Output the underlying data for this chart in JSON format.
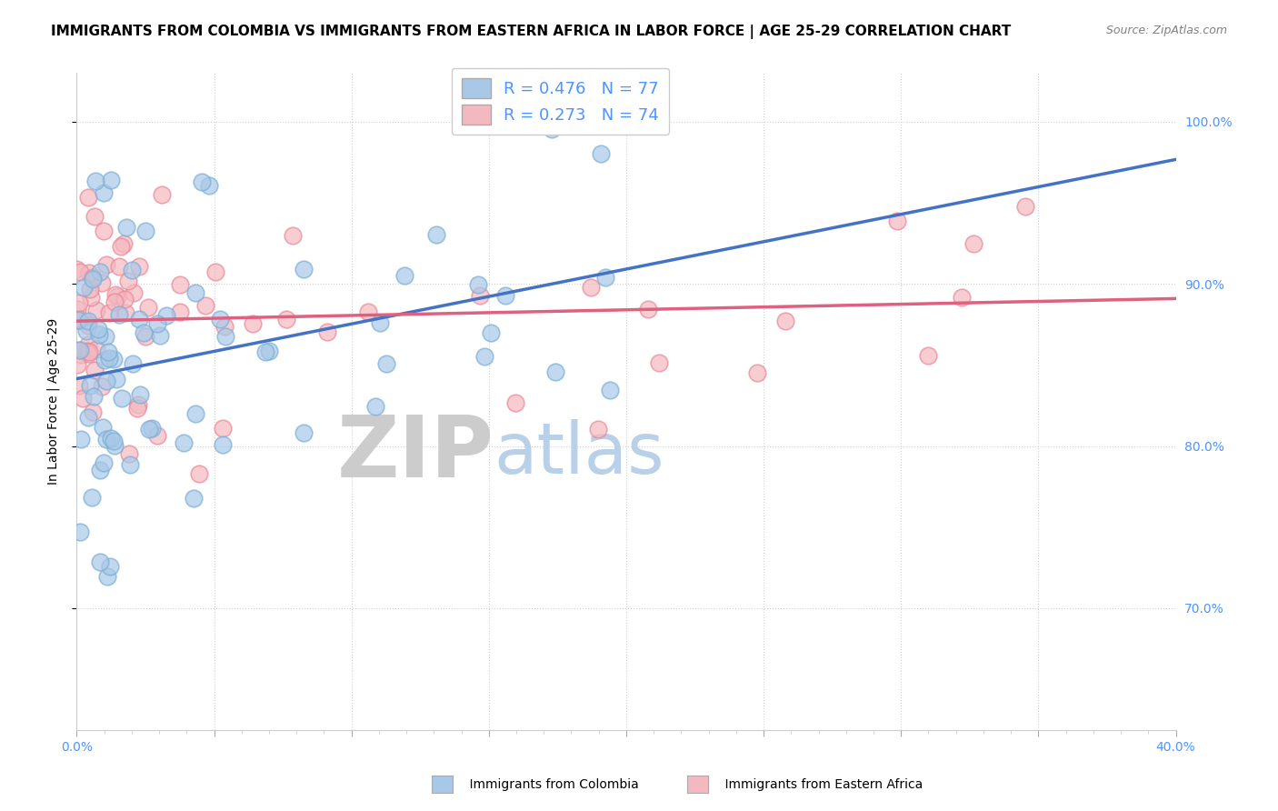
{
  "title": "IMMIGRANTS FROM COLOMBIA VS IMMIGRANTS FROM EASTERN AFRICA IN LABOR FORCE | AGE 25-29 CORRELATION CHART",
  "source": "Source: ZipAtlas.com",
  "ylabel": "In Labor Force | Age 25-29",
  "xlim": [
    0.0,
    0.4
  ],
  "ylim": [
    0.625,
    1.03
  ],
  "colombia_color": "#a8c8e8",
  "colombia_edge": "#7aafd4",
  "eastern_africa_color": "#f4b8c0",
  "eastern_africa_edge": "#e88898",
  "colombia_line_color": "#4472c4",
  "eastern_africa_line_color": "#e06080",
  "legend_R1": "R = 0.476",
  "legend_N1": "N = 77",
  "legend_R2": "R = 0.273",
  "legend_N2": "N = 74",
  "watermark_ZIP_color": "#cccccc",
  "watermark_atlas_color": "#b8d0e8",
  "axis_color": "#4d94ff",
  "grid_color": "#d0d0d0",
  "title_fontsize": 11,
  "axis_label_fontsize": 10,
  "tick_fontsize": 10,
  "legend_fontsize": 13
}
